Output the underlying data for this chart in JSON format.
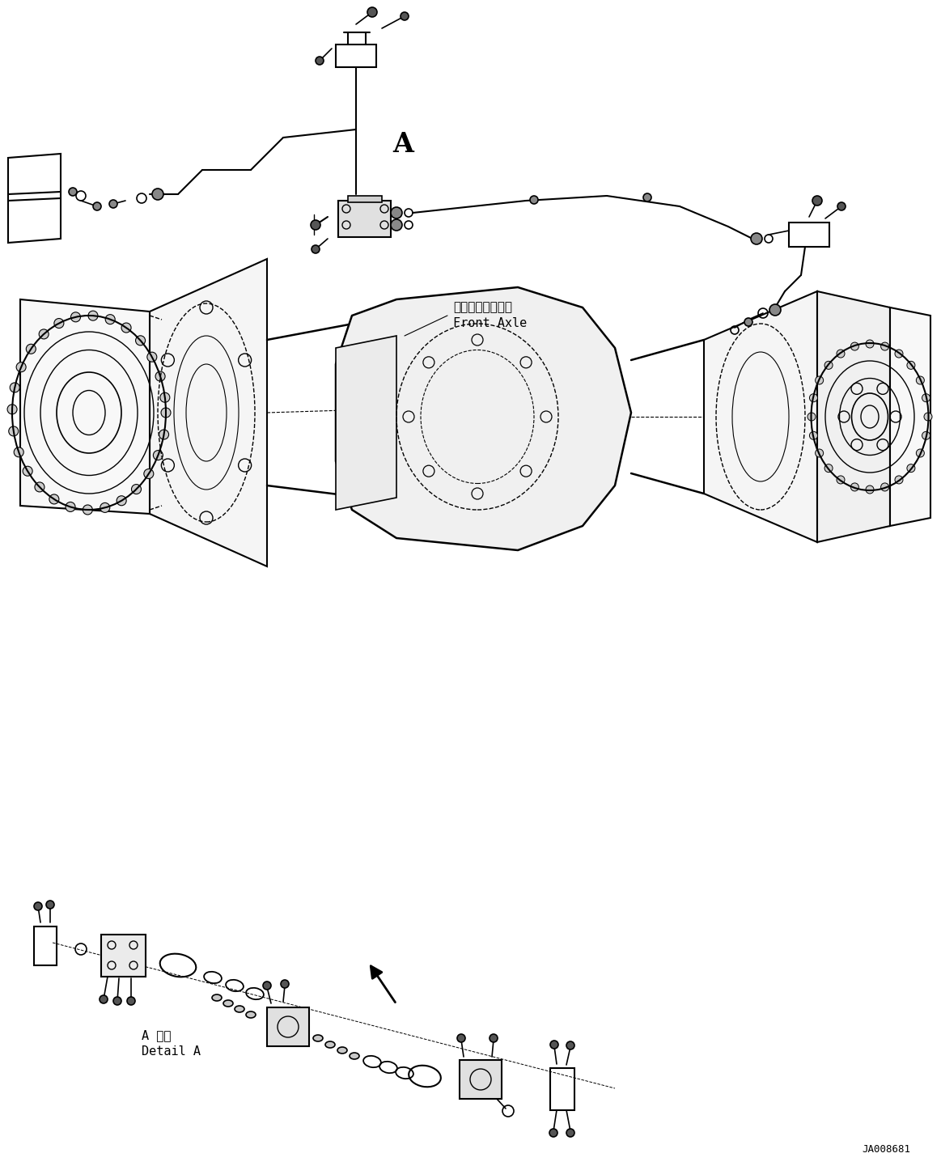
{
  "bg_color": "#ffffff",
  "fig_width": 11.63,
  "fig_height": 14.41,
  "dpi": 100,
  "label_front_axle_jp": "フロントアクスル",
  "label_front_axle_en": "Front Axle",
  "label_a": "A",
  "label_detail_jp": "A 詳細",
  "label_detail_en": "Detail A",
  "label_code": "JA008681",
  "arrow_color": "#000000",
  "line_color": "#000000",
  "text_color": "#000000"
}
